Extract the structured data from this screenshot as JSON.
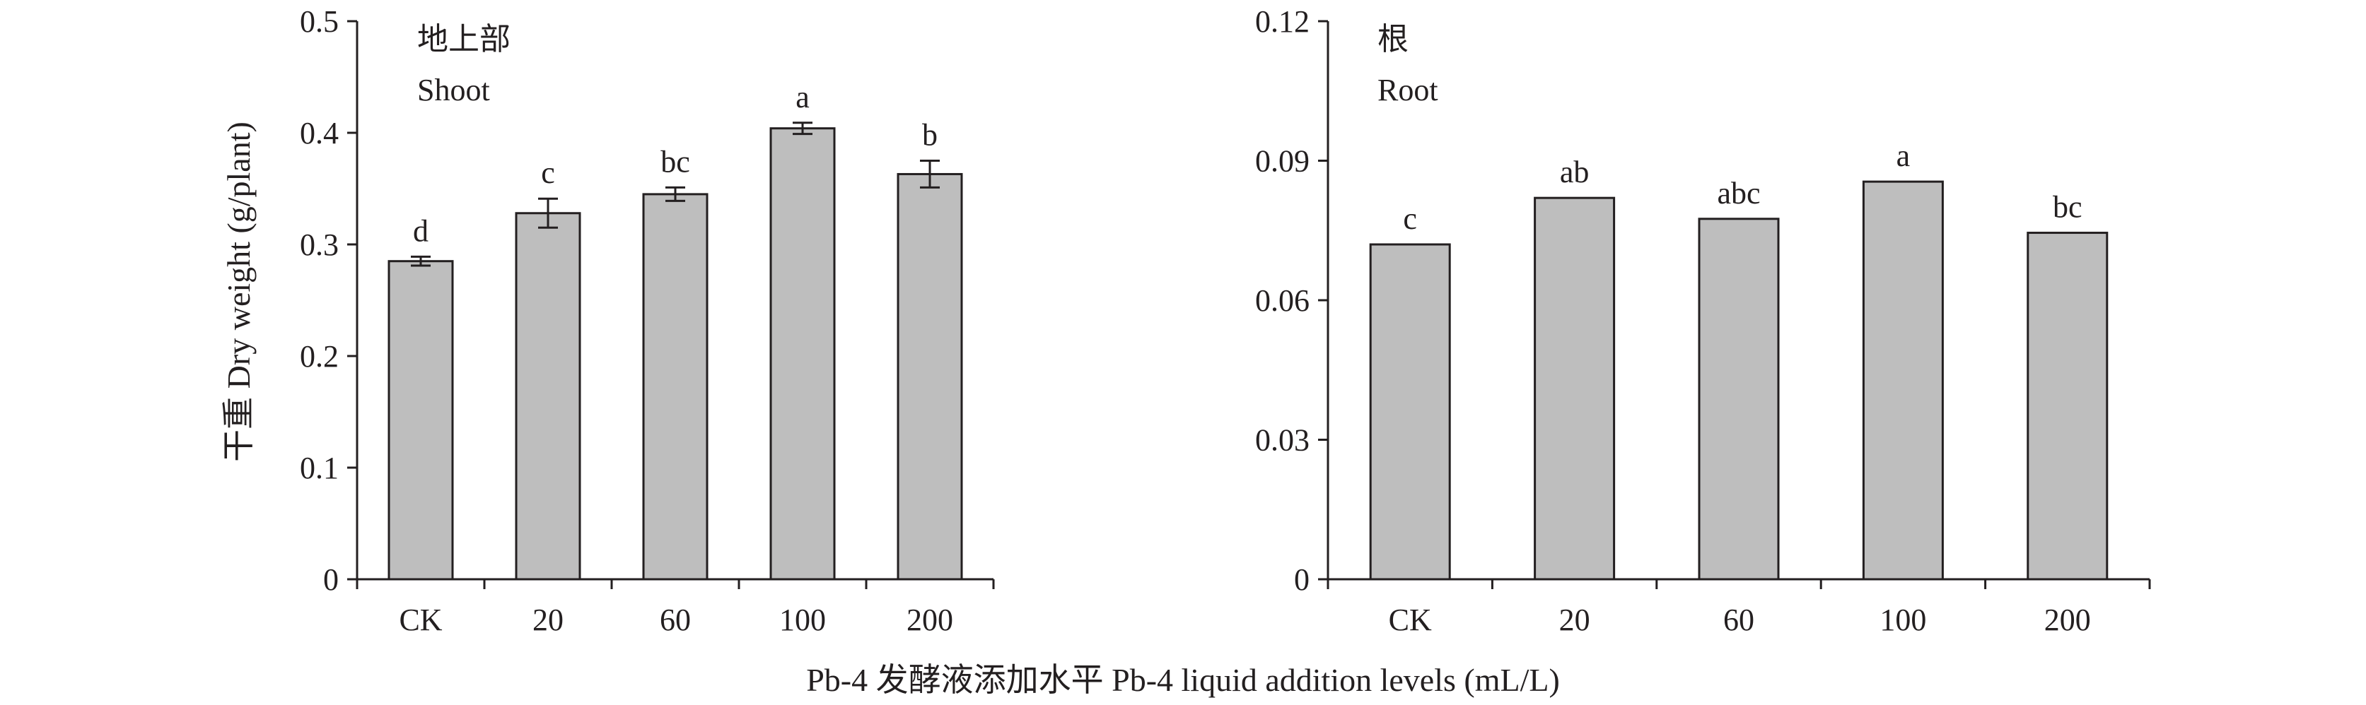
{
  "figure": {
    "ylabel": "干重 Dry weight (g/plant)",
    "xlabel": "Pb-4 发酵液添加水平 Pb-4 liquid addition levels (mL/L)",
    "colors": {
      "bar_fill": "#bebebe",
      "bar_stroke": "#231f20",
      "axis": "#231f20"
    }
  },
  "chart_data": [
    {
      "type": "bar",
      "title": "地上部",
      "subtitle": "Shoot",
      "categories": [
        "CK",
        "20",
        "60",
        "100",
        "200"
      ],
      "values": [
        0.285,
        0.328,
        0.345,
        0.404,
        0.363
      ],
      "errors": [
        0.004,
        0.013,
        0.006,
        0.005,
        0.012
      ],
      "significance": [
        "d",
        "c",
        "bc",
        "a",
        "b"
      ],
      "ylim": [
        0,
        0.5
      ],
      "yticks": [
        0,
        0.1,
        0.2,
        0.3,
        0.4,
        0.5
      ],
      "ytick_labels": [
        "0",
        "0.1",
        "0.2",
        "0.3",
        "0.4",
        "0.5"
      ],
      "grid": false
    },
    {
      "type": "bar",
      "title": "根",
      "subtitle": "Root",
      "categories": [
        "CK",
        "20",
        "60",
        "100",
        "200"
      ],
      "values": [
        0.072,
        0.082,
        0.0775,
        0.0855,
        0.0745
      ],
      "errors": [
        0,
        0,
        0,
        0,
        0
      ],
      "significance": [
        "c",
        "ab",
        "abc",
        "a",
        "bc"
      ],
      "ylim": [
        0,
        0.12
      ],
      "yticks": [
        0,
        0.03,
        0.06,
        0.09,
        0.12
      ],
      "ytick_labels": [
        "0",
        "0.03",
        "0.06",
        "0.09",
        "0.12"
      ],
      "grid": false
    }
  ]
}
